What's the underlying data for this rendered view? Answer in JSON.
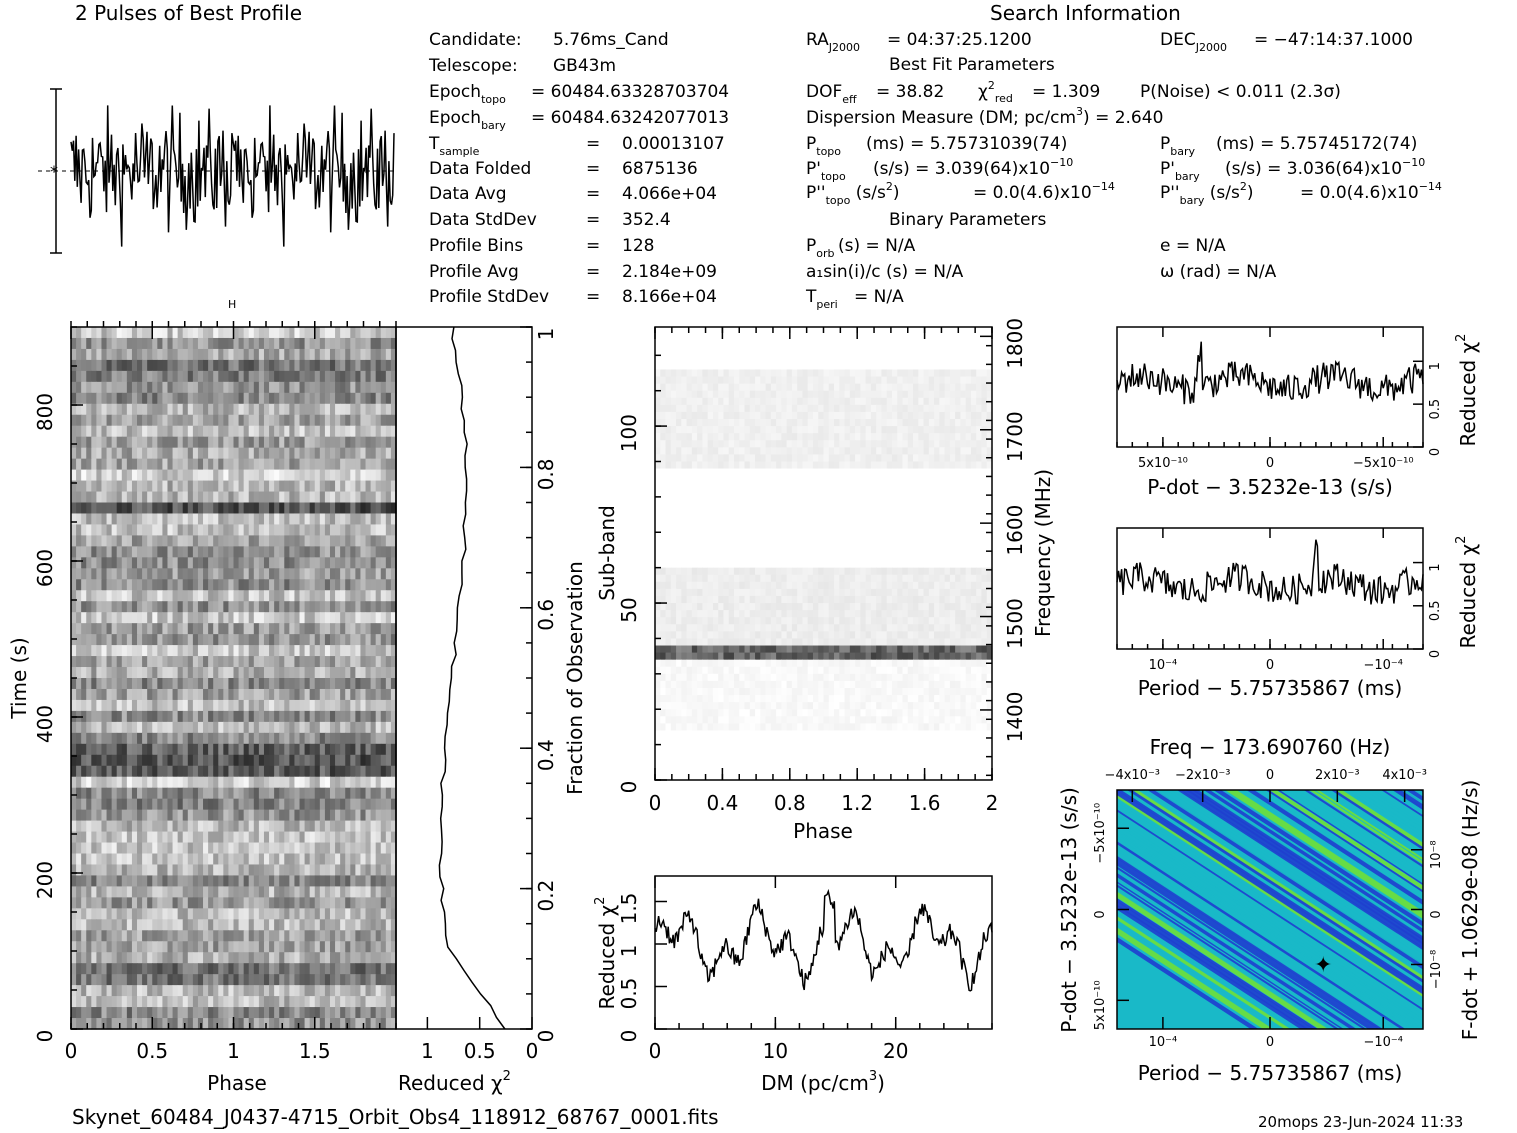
{
  "title_profile": "2 Pulses of Best Profile",
  "title_search": "Search Information",
  "info_left": [
    {
      "label": "Candidate:",
      "value": "5.76ms_Cand"
    },
    {
      "label": "Telescope:",
      "value": "GB43m"
    },
    {
      "label": "Epoch_topo",
      "sub": "topo",
      "value": "= 60484.63328703704"
    },
    {
      "label": "Epoch_bary",
      "sub": "bary",
      "value": "= 60484.63242077013"
    },
    {
      "label": "T_sample",
      "sub": "sample",
      "value": "0.00013107"
    },
    {
      "label": "Data Folded",
      "value": "6875136"
    },
    {
      "label": "Data Avg",
      "value": "4.066e+04"
    },
    {
      "label": "Data StdDev",
      "value": "352.4"
    },
    {
      "label": "Profile Bins",
      "value": "128"
    },
    {
      "label": "Profile Avg",
      "value": "2.184e+09"
    },
    {
      "label": "Profile StdDev",
      "value": "8.166e+04"
    }
  ],
  "ra": "= 04:37:25.1200",
  "dec": "= −47:14:37.1000",
  "best_fit_header": "Best Fit Parameters",
  "dof_line": "= 38.82",
  "chi2_line": "= 1.309",
  "pnoise_line": "P(Noise) < 0.011   (2.3σ)",
  "dm_line": "Dispersion Measure (DM; pc/cm",
  "dm_line2": ") = 2.640",
  "ptopo": "(ms) =  5.75731039(74)",
  "pbary": "(ms) =  5.75745172(74)",
  "pdtopo": "(s/s) =  3.039(64)x10",
  "pdbary": "(s/s) =  3.036(64)x10",
  "pdexp": "−10",
  "pddtopo": "= 0.0(4.6)x10",
  "pddbary": "= 0.0(4.6)x10",
  "pddexp": "−14",
  "binary_header": "Binary Parameters",
  "porb": "(s) = N/A",
  "a1sini": "a₁sin(i)/c (s) = N/A",
  "tperi": "= N/A",
  "ecc": "e = N/A",
  "omega": "ω (rad) = N/A",
  "axis_labels": {
    "phase": "Phase",
    "time": "Time (s)",
    "reduced_chi2": "Reduced χ",
    "fraction": "Fraction of Observation",
    "subband": "Sub-band",
    "frequency": "Frequency (MHz)",
    "dm": "DM (pc/cm",
    "pdot": "P-dot − 3.5232e-13 (s/s)",
    "period": "Period − 5.75735867 (ms)",
    "freq_top": "Freq − 173.690760 (Hz)",
    "pdot_left": "P-dot − 3.5232e-13 (s/s)",
    "fdot_right": "F-dot + 1.0629e-08 (Hz/s)"
  },
  "footer_file": "Skynet_60484_J0437-4715_Orbit_Obs4_118912_68767_0001.fits",
  "footer_stamp": "20mops 23-Jun-2024 11:33",
  "colors": {
    "ink": "#000000",
    "pp_blue": "#1f3fd0",
    "pp_cyan": "#19b9c8",
    "pp_green": "#6fe03a"
  },
  "chart_data": [
    {
      "type": "line",
      "name": "pulse_profile",
      "title": "2 Pulses of Best Profile",
      "xlabel": "",
      "ylabel": "",
      "xlim": [
        0,
        2
      ]
    },
    {
      "type": "heatmap",
      "name": "time_vs_phase",
      "xlabel": "Phase",
      "ylabel": "Time (s)",
      "xlim": [
        0,
        2
      ],
      "ylim": [
        0,
        900
      ],
      "x_ticks": [
        "0",
        "0.5",
        "1",
        "1.5"
      ],
      "y_ticks": [
        "0",
        "200",
        "400",
        "600",
        "800"
      ]
    },
    {
      "type": "line",
      "name": "reduced_chi2_vs_time",
      "xlabel": "Reduced χ²",
      "ylabel": "Fraction of Observation",
      "x_ticks": [
        "1",
        "0.5",
        "0"
      ],
      "y_ticks": [
        "0",
        "0.2",
        "0.4",
        "0.6",
        "0.8",
        "1"
      ]
    },
    {
      "type": "heatmap",
      "name": "subband_vs_phase",
      "xlabel": "Phase",
      "ylabel": "Sub-band",
      "xlim": [
        0,
        2
      ],
      "ylim": [
        0,
        128
      ],
      "x_ticks": [
        "0",
        "0.4",
        "0.8",
        "1.2",
        "1.6",
        "2"
      ],
      "y_ticks": [
        "0",
        "50",
        "100"
      ],
      "right_ticks": [
        "1400",
        "1500",
        "1600",
        "1700",
        "1800"
      ]
    },
    {
      "type": "line",
      "name": "chi2_vs_dm",
      "xlabel": "DM (pc/cm³)",
      "ylabel": "Reduced χ²",
      "xlim": [
        0,
        28
      ],
      "x_ticks": [
        "0",
        "10",
        "20"
      ],
      "y_ticks": [
        "0",
        "0.5",
        "1",
        "1.5"
      ]
    },
    {
      "type": "line",
      "name": "chi2_vs_pdot",
      "xlabel": "P-dot − 3.5232e-13 (s/s)",
      "ylabel": "Reduced χ²",
      "x_ticks": [
        "5x10⁻¹⁰",
        "0",
        "−5x10⁻¹⁰"
      ],
      "y_ticks": [
        "0",
        "0.5",
        "1"
      ]
    },
    {
      "type": "line",
      "name": "chi2_vs_period",
      "xlabel": "Period − 5.75735867 (ms)",
      "ylabel": "Reduced χ²",
      "x_ticks": [
        "10⁻⁴",
        "0",
        "−10⁻⁴"
      ],
      "y_ticks": [
        "0",
        "0.5",
        "1"
      ]
    },
    {
      "type": "heatmap",
      "name": "pdot_vs_period",
      "xlabel": "Period − 5.75735867 (ms)",
      "ylabel": "P-dot − 3.5232e-13 (s/s)",
      "x_ticks": [
        "10⁻⁴",
        "0",
        "−10⁻⁴"
      ],
      "y_ticks": [
        "−5x10⁻¹⁰",
        "0",
        "5x10⁻¹⁰"
      ],
      "top_ticks": [
        "−4x10⁻³",
        "−2x10⁻³",
        "0",
        "2x10⁻³",
        "4x10⁻³"
      ],
      "right_ticks": [
        "10⁻⁸",
        "0",
        "−10⁻⁸"
      ]
    }
  ]
}
